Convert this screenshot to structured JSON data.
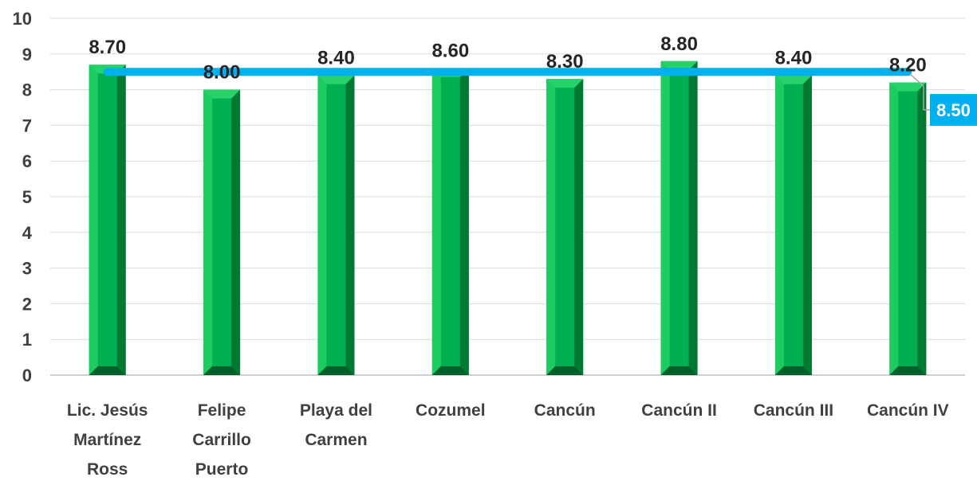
{
  "chart_data": {
    "type": "bar",
    "categories": [
      [
        "Lic. Jesús",
        "Martínez",
        "Ross"
      ],
      [
        "Felipe",
        "Carrillo",
        "Puerto"
      ],
      [
        "Playa del",
        "Carmen"
      ],
      [
        "Cozumel"
      ],
      [
        "Cancún"
      ],
      [
        "Cancún II"
      ],
      [
        "Cancún III"
      ],
      [
        "Cancún IV"
      ]
    ],
    "values": [
      8.7,
      8.0,
      8.4,
      8.6,
      8.3,
      8.8,
      8.4,
      8.2
    ],
    "value_labels": [
      "8.70",
      "8.00",
      "8.40",
      "8.60",
      "8.30",
      "8.80",
      "8.40",
      "8.20"
    ],
    "reference_line": {
      "value": 8.5,
      "label": "8.50",
      "color": "#00B0F0"
    },
    "y_ticks": [
      "0",
      "1",
      "2",
      "3",
      "4",
      "5",
      "6",
      "7",
      "8",
      "9",
      "10"
    ],
    "ylim": [
      0,
      10
    ],
    "grid": true,
    "legend": false,
    "colors": {
      "bar_face": "#00B050",
      "bar_left": "#1ECB60",
      "bar_right": "#007A33",
      "bar_top": "#28D26A",
      "bar_bottom": "#00602A",
      "grid": "#D9D9D9",
      "axis": "#BFBFBF",
      "reference": "#00B0F0"
    }
  }
}
